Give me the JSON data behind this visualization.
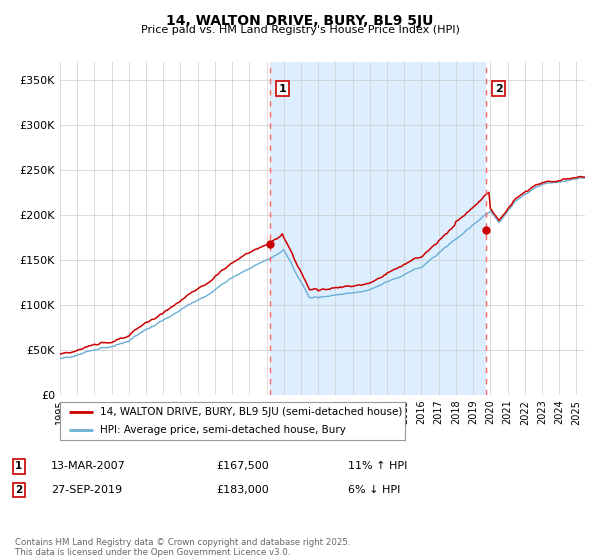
{
  "title": "14, WALTON DRIVE, BURY, BL9 5JU",
  "subtitle": "Price paid vs. HM Land Registry's House Price Index (HPI)",
  "ylabel_ticks": [
    "£0",
    "£50K",
    "£100K",
    "£150K",
    "£200K",
    "£250K",
    "£300K",
    "£350K"
  ],
  "ytick_vals": [
    0,
    50000,
    100000,
    150000,
    200000,
    250000,
    300000,
    350000
  ],
  "ylim": [
    0,
    370000
  ],
  "xlim_start": 1995.0,
  "xlim_end": 2025.5,
  "purchase1_x": 2007.2,
  "purchase1_y": 167500,
  "purchase1_label": "1",
  "purchase2_x": 2019.75,
  "purchase2_y": 183000,
  "purchase2_label": "2",
  "line1_color": "#cc0000",
  "line2_color": "#6aafd6",
  "shade_color": "#ddeeff",
  "vline_color": "#ff6666",
  "legend_line1": "14, WALTON DRIVE, BURY, BL9 5JU (semi-detached house)",
  "legend_line2": "HPI: Average price, semi-detached house, Bury",
  "annotation1_date": "13-MAR-2007",
  "annotation1_price": "£167,500",
  "annotation1_hpi": "11% ↑ HPI",
  "annotation2_date": "27-SEP-2019",
  "annotation2_price": "£183,000",
  "annotation2_hpi": "6% ↓ HPI",
  "footer": "Contains HM Land Registry data © Crown copyright and database right 2025.\nThis data is licensed under the Open Government Licence v3.0.",
  "background_color": "#ffffff",
  "grid_color": "#cccccc"
}
